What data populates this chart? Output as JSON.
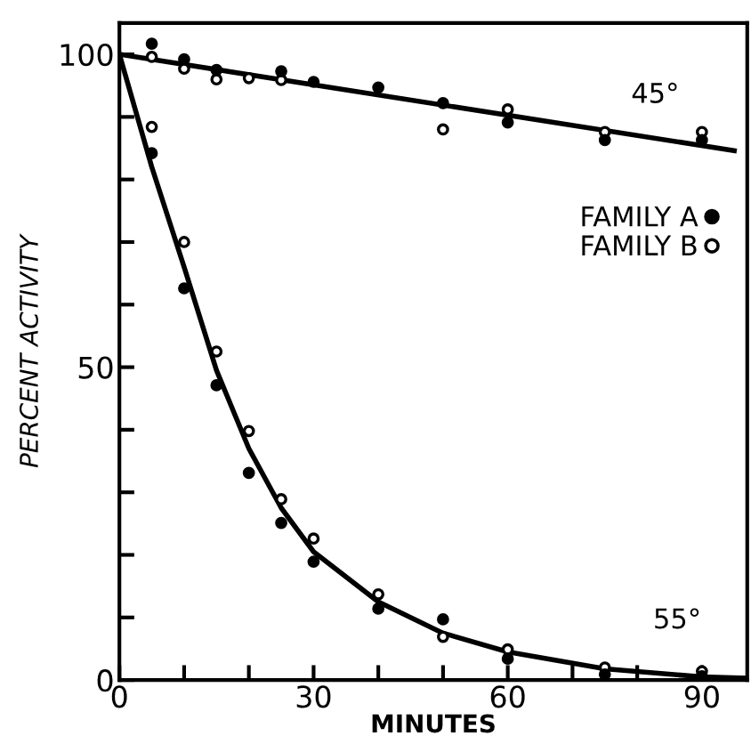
{
  "chart_data": {
    "type": "scatter",
    "xlabel": "MINUTES",
    "ylabel": "PERCENT ACTIVITY",
    "xlim": [
      0,
      97
    ],
    "ylim": [
      0,
      105
    ],
    "xticks": [
      0,
      {
        "value": 10,
        "label": null
      },
      {
        "value": 20,
        "label": null
      },
      30,
      {
        "value": 40,
        "label": null
      },
      {
        "value": 50,
        "label": null
      },
      60,
      {
        "value": 70,
        "label": null
      },
      {
        "value": 80,
        "label": null
      },
      90
    ],
    "yticks": [
      0,
      {
        "value": 10,
        "label": null
      },
      {
        "value": 20,
        "label": null
      },
      {
        "value": 30,
        "label": null
      },
      {
        "value": 40,
        "label": null
      },
      50,
      {
        "value": 60,
        "label": null
      },
      {
        "value": 70,
        "label": null
      },
      {
        "value": 80,
        "label": null
      },
      {
        "value": 90,
        "label": null
      },
      100
    ],
    "grid": false,
    "legend": "right",
    "series": [
      {
        "name": "FAMILY A",
        "color": "#000000",
        "marker": "circle",
        "x": [
          5,
          10,
          15,
          25,
          30,
          40,
          50,
          60,
          75,
          90,
          5,
          10,
          15,
          20,
          25,
          30,
          40,
          50,
          60,
          75,
          90
        ],
        "values": [
          101.7,
          99.2,
          97.5,
          97.3,
          95.6,
          94.7,
          92.2,
          89.1,
          86.3,
          86.3,
          84.2,
          62.6,
          47.1,
          33.1,
          25.1,
          18.9,
          11.4,
          9.7,
          3.4,
          0.9,
          0.6
        ]
      },
      {
        "name": "FAMILY B",
        "color": "#ffffff",
        "marker": "circle",
        "x": [
          5,
          10,
          15,
          20,
          25,
          50,
          60,
          75,
          90,
          5,
          10,
          15,
          20,
          25,
          30,
          40,
          50,
          60,
          75,
          90
        ],
        "values": [
          99.6,
          97.7,
          96,
          96.2,
          95.9,
          88,
          91.2,
          87.6,
          87.6,
          88.4,
          70,
          52.5,
          39.8,
          28.9,
          22.6,
          13.7,
          6.9,
          4.9,
          2,
          1.4
        ]
      },
      {
        "type": "line",
        "color": "#000000",
        "marker": "none",
        "x": [
          0,
          95
        ],
        "values": [
          100,
          84.6
        ]
      },
      {
        "type": "line",
        "color": "#000000",
        "marker": "none",
        "x": [
          0,
          5,
          10,
          15,
          20,
          25,
          30,
          40,
          50,
          60,
          75,
          90,
          97
        ],
        "values": [
          100,
          82,
          66,
          49.5,
          37,
          27.5,
          20.5,
          12.5,
          7.5,
          4.5,
          1.8,
          0.5,
          0.3
        ]
      }
    ],
    "annotations": [
      "45°",
      "55°"
    ]
  }
}
